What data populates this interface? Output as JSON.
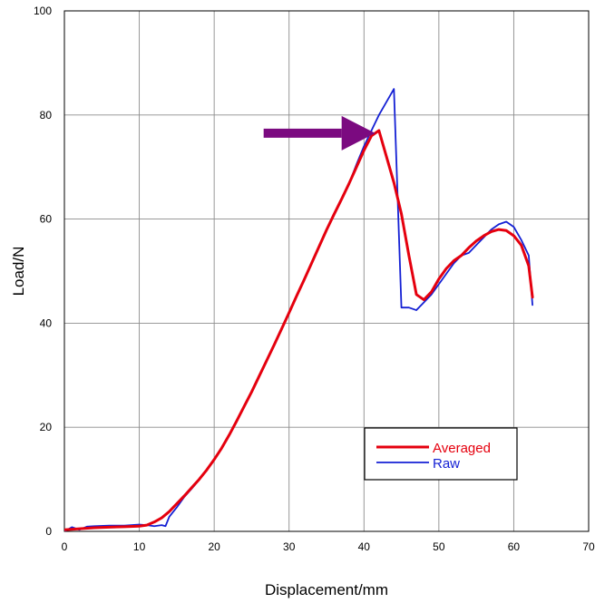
{
  "chart_data": {
    "type": "line",
    "xlabel": "Displacement/mm",
    "ylabel": "Load/N",
    "xlim": [
      0,
      70
    ],
    "ylim": [
      0,
      100
    ],
    "xticks": [
      "0",
      "10",
      "20",
      "30",
      "40",
      "50",
      "60",
      "70"
    ],
    "yticks": [
      "0",
      "20",
      "40",
      "60",
      "80",
      "100"
    ],
    "grid": true,
    "legend": {
      "placement": "bottom-right",
      "entries": [
        "Averaged",
        "Raw"
      ]
    },
    "annotation": {
      "type": "arrow",
      "color": "#7b0a80",
      "points_to": [
        41.5,
        76.5
      ]
    },
    "series": [
      {
        "name": "Averaged",
        "color": "#e5000e",
        "x": [
          0,
          2,
          4,
          6,
          8,
          10,
          11,
          12,
          13,
          14,
          15,
          16,
          17,
          18,
          19,
          20,
          21,
          22,
          23,
          24,
          25,
          26,
          27,
          28,
          29,
          30,
          31,
          32,
          33,
          34,
          35,
          36,
          37,
          38,
          39,
          40,
          41,
          42,
          43,
          44,
          45,
          46,
          47,
          48,
          49,
          50,
          51,
          52,
          53,
          54,
          55,
          56,
          57,
          58,
          59,
          60,
          61,
          62,
          62.5
        ],
        "y": [
          0.3,
          0.5,
          0.7,
          0.8,
          0.9,
          1.0,
          1.2,
          1.8,
          2.6,
          3.8,
          5.3,
          6.8,
          8.4,
          10.0,
          11.8,
          13.8,
          16.0,
          18.5,
          21.2,
          24.0,
          26.8,
          29.8,
          32.8,
          35.8,
          38.9,
          42.0,
          45.2,
          48.3,
          51.5,
          54.7,
          57.9,
          60.9,
          63.8,
          66.8,
          70.0,
          73.2,
          76.0,
          77.0,
          72.0,
          67.0,
          61.0,
          53.0,
          45.5,
          44.5,
          46.0,
          48.5,
          50.5,
          52.0,
          53.0,
          54.5,
          55.8,
          56.8,
          57.6,
          58.0,
          57.8,
          56.8,
          55.0,
          51.0,
          45.0
        ]
      },
      {
        "name": "Raw",
        "color": "#1420d4",
        "x": [
          0,
          1,
          2,
          3,
          4,
          6,
          8,
          10,
          11,
          12,
          13,
          13.5,
          14,
          15,
          16,
          17,
          18,
          19,
          20,
          21,
          22,
          23,
          24,
          25,
          26,
          27,
          28,
          29,
          30,
          31,
          32,
          33,
          34,
          35,
          36,
          37,
          38,
          39,
          40,
          41,
          42,
          43,
          44,
          45,
          46,
          47,
          48,
          49,
          50,
          51,
          52,
          53,
          54,
          55,
          56,
          57,
          58,
          59,
          60,
          61,
          62,
          62.5
        ],
        "y": [
          0.0,
          0.8,
          0.3,
          0.9,
          1.0,
          1.1,
          1.1,
          1.3,
          1.2,
          1.0,
          1.2,
          1.0,
          2.8,
          4.6,
          6.6,
          8.2,
          9.9,
          11.8,
          13.8,
          16.0,
          18.5,
          21.2,
          24.0,
          26.8,
          29.8,
          32.8,
          35.8,
          38.9,
          42.0,
          45.2,
          48.3,
          51.5,
          54.7,
          57.9,
          60.9,
          63.8,
          66.8,
          70.5,
          74.0,
          77.0,
          80.0,
          82.5,
          85.0,
          43.0,
          43.0,
          42.5,
          44.0,
          45.5,
          47.5,
          49.5,
          51.5,
          53.0,
          53.5,
          55.0,
          56.5,
          58.0,
          59.0,
          59.5,
          58.5,
          56.0,
          53.0,
          43.5
        ]
      }
    ]
  }
}
